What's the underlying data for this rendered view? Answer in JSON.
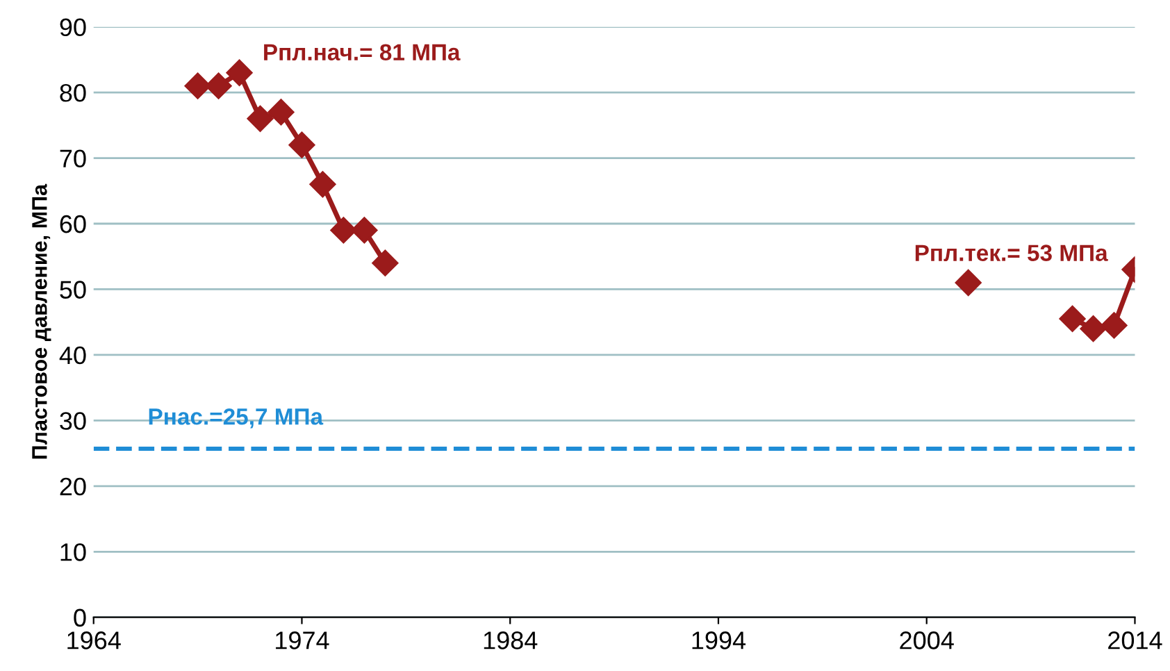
{
  "chart_data": {
    "type": "line",
    "ylabel": "Пластовое давление, МПа",
    "series": [
      {
        "color": "#9b1b1b",
        "x": [
          1969,
          1970,
          1971,
          1972,
          1973,
          1974,
          1975,
          1976,
          1977,
          1978
        ],
        "values": [
          81,
          81,
          83,
          76,
          77,
          72,
          66,
          59,
          59,
          54
        ]
      },
      {
        "color": "#9b1b1b",
        "x": [
          2006
        ],
        "values": [
          51
        ]
      },
      {
        "color": "#9b1b1b",
        "x": [
          2011,
          2012,
          2013,
          2014
        ],
        "values": [
          45.5,
          44,
          44.5,
          53
        ]
      }
    ],
    "marker": "diamond",
    "line_style": "solid",
    "xlim": [
      1964,
      2014
    ],
    "xticks": [
      1964,
      1974,
      1984,
      1994,
      2004,
      2014
    ],
    "ylim": [
      0,
      90
    ],
    "yticks": [
      0,
      10,
      20,
      30,
      40,
      50,
      60,
      70,
      80,
      90
    ],
    "grid": "y",
    "ref_lines": [
      {
        "axis": "y",
        "value": 25.7,
        "label": "Рнас.=25,7 МПа",
        "color": "#1f8dd6",
        "line_style": "dashed"
      }
    ],
    "annotations": [
      {
        "text": "Рпл.нач.= 81 МПа",
        "x": 1971,
        "y": 83
      },
      {
        "text": "Рпл.тек.= 53 МПа",
        "x": 2014,
        "y": 53
      }
    ]
  }
}
